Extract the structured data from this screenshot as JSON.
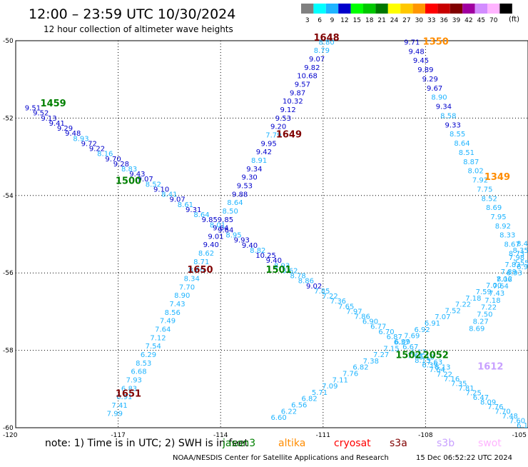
{
  "header": {
    "title": "12:00 – 23:59 UTC 10/30/2024",
    "subtitle": "12 hour collection of altimeter wave heights"
  },
  "legend": {
    "unit": "(ft)",
    "bins": [
      {
        "label": "3",
        "color": "#808080"
      },
      {
        "label": "6",
        "color": "#00ffff"
      },
      {
        "label": "9",
        "color": "#1fb4ff"
      },
      {
        "label": "12",
        "color": "#0000cc"
      },
      {
        "label": "15",
        "color": "#00ff00"
      },
      {
        "label": "18",
        "color": "#00c800"
      },
      {
        "label": "21",
        "color": "#007800"
      },
      {
        "label": "24",
        "color": "#ffff00"
      },
      {
        "label": "27",
        "color": "#ffc800"
      },
      {
        "label": "30",
        "color": "#ff9600"
      },
      {
        "label": "33",
        "color": "#ff0000"
      },
      {
        "label": "36",
        "color": "#c80000"
      },
      {
        "label": "39",
        "color": "#800000"
      },
      {
        "label": "42",
        "color": "#a000a0"
      },
      {
        "label": "45",
        "color": "#d28cff"
      },
      {
        "label": "70",
        "color": "#ffb4ff"
      },
      {
        "label": "",
        "color": "#000000"
      }
    ]
  },
  "footer": {
    "note": "note:  1) Time is in UTC; 2) SWH is in feet",
    "satellites": [
      {
        "name": "jason3",
        "color": "#008000"
      },
      {
        "name": "altika",
        "color": "#ff8c00"
      },
      {
        "name": "cryosat",
        "color": "#ff0000"
      },
      {
        "name": "s3a",
        "color": "#800000"
      },
      {
        "name": "s3b",
        "color": "#c8a0ff"
      },
      {
        "name": "swot",
        "color": "#ffb4ff"
      }
    ],
    "credit": "NOAA/NESDIS Center for Satellite Applications and Research",
    "timestamp": "15 Dec 06:52:22 UTC 2024"
  },
  "chart_data": {
    "type": "scatter",
    "xlim": [
      -120,
      -105
    ],
    "ylim": [
      -60,
      -50
    ],
    "x_ticks": [
      "-120",
      "-117",
      "-114",
      "-111",
      "-108",
      "-105"
    ],
    "y_ticks": [
      "-50",
      "-52",
      "-54",
      "-56",
      "-58",
      "-60"
    ],
    "grid": true,
    "colors": {
      "light": "#1fb4ff",
      "dark": "#0000cc",
      "grid": "#000000"
    },
    "pass_labels": [
      {
        "label": "1459",
        "x": -118.9,
        "y": -51.7,
        "color": "#008000"
      },
      {
        "label": "1500",
        "x": -116.7,
        "y": -53.7,
        "color": "#008000"
      },
      {
        "label": "1501",
        "x": -112.3,
        "y": -56.0,
        "color": "#008000"
      },
      {
        "label": "1502",
        "x": -108.5,
        "y": -58.2,
        "color": "#008000"
      },
      {
        "label": "1648",
        "x": -110.9,
        "y": -50.0,
        "color": "#800000"
      },
      {
        "label": "1649",
        "x": -112.0,
        "y": -52.5,
        "color": "#800000"
      },
      {
        "label": "1650",
        "x": -114.6,
        "y": -56.0,
        "color": "#800000"
      },
      {
        "label": "1651",
        "x": -116.7,
        "y": -59.2,
        "color": "#800000"
      },
      {
        "label": "1350",
        "x": -107.7,
        "y": -50.1,
        "color": "#ff8c00"
      },
      {
        "label": "1349",
        "x": -105.9,
        "y": -53.6,
        "color": "#ff8c00"
      },
      {
        "label": "2052",
        "x": -107.7,
        "y": -58.2,
        "color": "#008000"
      },
      {
        "label": "1612",
        "x": -106.1,
        "y": -58.5,
        "color": "#c8a0ff"
      }
    ],
    "tracks": [
      {
        "name": "1459/1500/1501/1502",
        "x_start": -119.5,
        "y_start": -51.8,
        "x_end": -107.5,
        "y_end": -58.5,
        "values": [
          "9.51",
          "9.52",
          "9.13",
          "9.41",
          "9.29",
          "9.48",
          "8.93",
          "9.72",
          "9.22",
          "8.16",
          "9.70",
          "9.28",
          "8.83",
          "9.43",
          "9.07",
          "8.52",
          "9.10",
          "8.41",
          "9.07",
          "8.61",
          "9.31",
          "8.64",
          "9.85",
          "8.01",
          "9.64",
          "8.95",
          "9.93",
          "9.40",
          "8.82",
          "10.25",
          "9.40",
          "8.93",
          "8.62",
          "8.78",
          "8.86",
          "9.02",
          "7.85",
          "7.22",
          "7.36",
          "7.65",
          "7.97",
          "7.86",
          "6.90",
          "6.77",
          "6.70",
          "6.87",
          "6.09",
          "6.67",
          "6.12",
          "6.10",
          "7.63",
          "8.13"
        ]
      },
      {
        "name": "1648/1649/1650/1651",
        "x_start": -110.9,
        "y_start": -50.1,
        "x_end": -117.1,
        "y_end": -59.7,
        "values": [
          "8.80",
          "8.79",
          "9.07",
          "9.82",
          "10.68",
          "9.57",
          "9.87",
          "10.32",
          "9.12",
          "9.53",
          "9.20",
          "7.79",
          "9.95",
          "9.42",
          "8.91",
          "9.34",
          "9.30",
          "9.53",
          "9.88",
          "8.64",
          "8.50",
          "9.85",
          "9.64",
          "9.01",
          "9.40",
          "8.62",
          "8.71",
          "8.60",
          "8.34",
          "7.70",
          "8.90",
          "7.43",
          "8.56",
          "7.49",
          "7.64",
          "7.12",
          "7.54",
          "6.29",
          "8.53",
          "6.68",
          "7.93",
          "6.83",
          "6.91",
          "7.41",
          "7.99"
        ]
      },
      {
        "name": "1350/1349",
        "x_start": -108.4,
        "y_start": -50.1,
        "x_end": -105.2,
        "y_end": -55.8,
        "values": [
          "9.71",
          "9.48",
          "9.45",
          "9.89",
          "9.29",
          "9.67",
          "8.90",
          "9.34",
          "8.58",
          "9.33",
          "8.55",
          "8.64",
          "8.51",
          "8.87",
          "8.02",
          "7.92",
          "7.75",
          "8.52",
          "8.69",
          "7.95",
          "8.92",
          "8.33",
          "8.67",
          "8.73",
          "7.55"
        ]
      },
      {
        "name": "ascending-1",
        "x_start": -112.3,
        "y_start": -59.8,
        "x_end": -105.1,
        "y_end": -55.9,
        "values": [
          "6.60",
          "6.22",
          "6.56",
          "6.82",
          "5.71",
          "7.09",
          "7.11",
          "7.76",
          "6.82",
          "7.38",
          "7.27",
          "7.15",
          "6.37",
          "7.69",
          "6.92",
          "6.91",
          "7.07",
          "7.52",
          "7.22",
          "7.18",
          "7.59",
          "7.00",
          "7.06",
          "6.93",
          "6.97"
        ]
      },
      {
        "name": "descending-2",
        "x_start": -108.3,
        "y_start": -58.2,
        "x_end": -105.1,
        "y_end": -60.0,
        "values": [
          "7.63",
          "8.13",
          "6.39",
          "7.64",
          "7.22",
          "7.16",
          "7.35",
          "7.81",
          "7.25",
          "6.47",
          "8.09",
          "7.76",
          "7.70",
          "7.48",
          "7.60",
          "6.14"
        ]
      },
      {
        "name": "ascending-2",
        "x_start": -106.5,
        "y_start": -57.5,
        "x_end": -105.1,
        "y_end": -55.3,
        "values": [
          "8.69",
          "8.27",
          "7.50",
          "7.22",
          "7.18",
          "7.43",
          "7.64",
          "8.12",
          "7.89",
          "7.83",
          "7.98",
          "8.35",
          "8.40"
        ]
      }
    ]
  }
}
